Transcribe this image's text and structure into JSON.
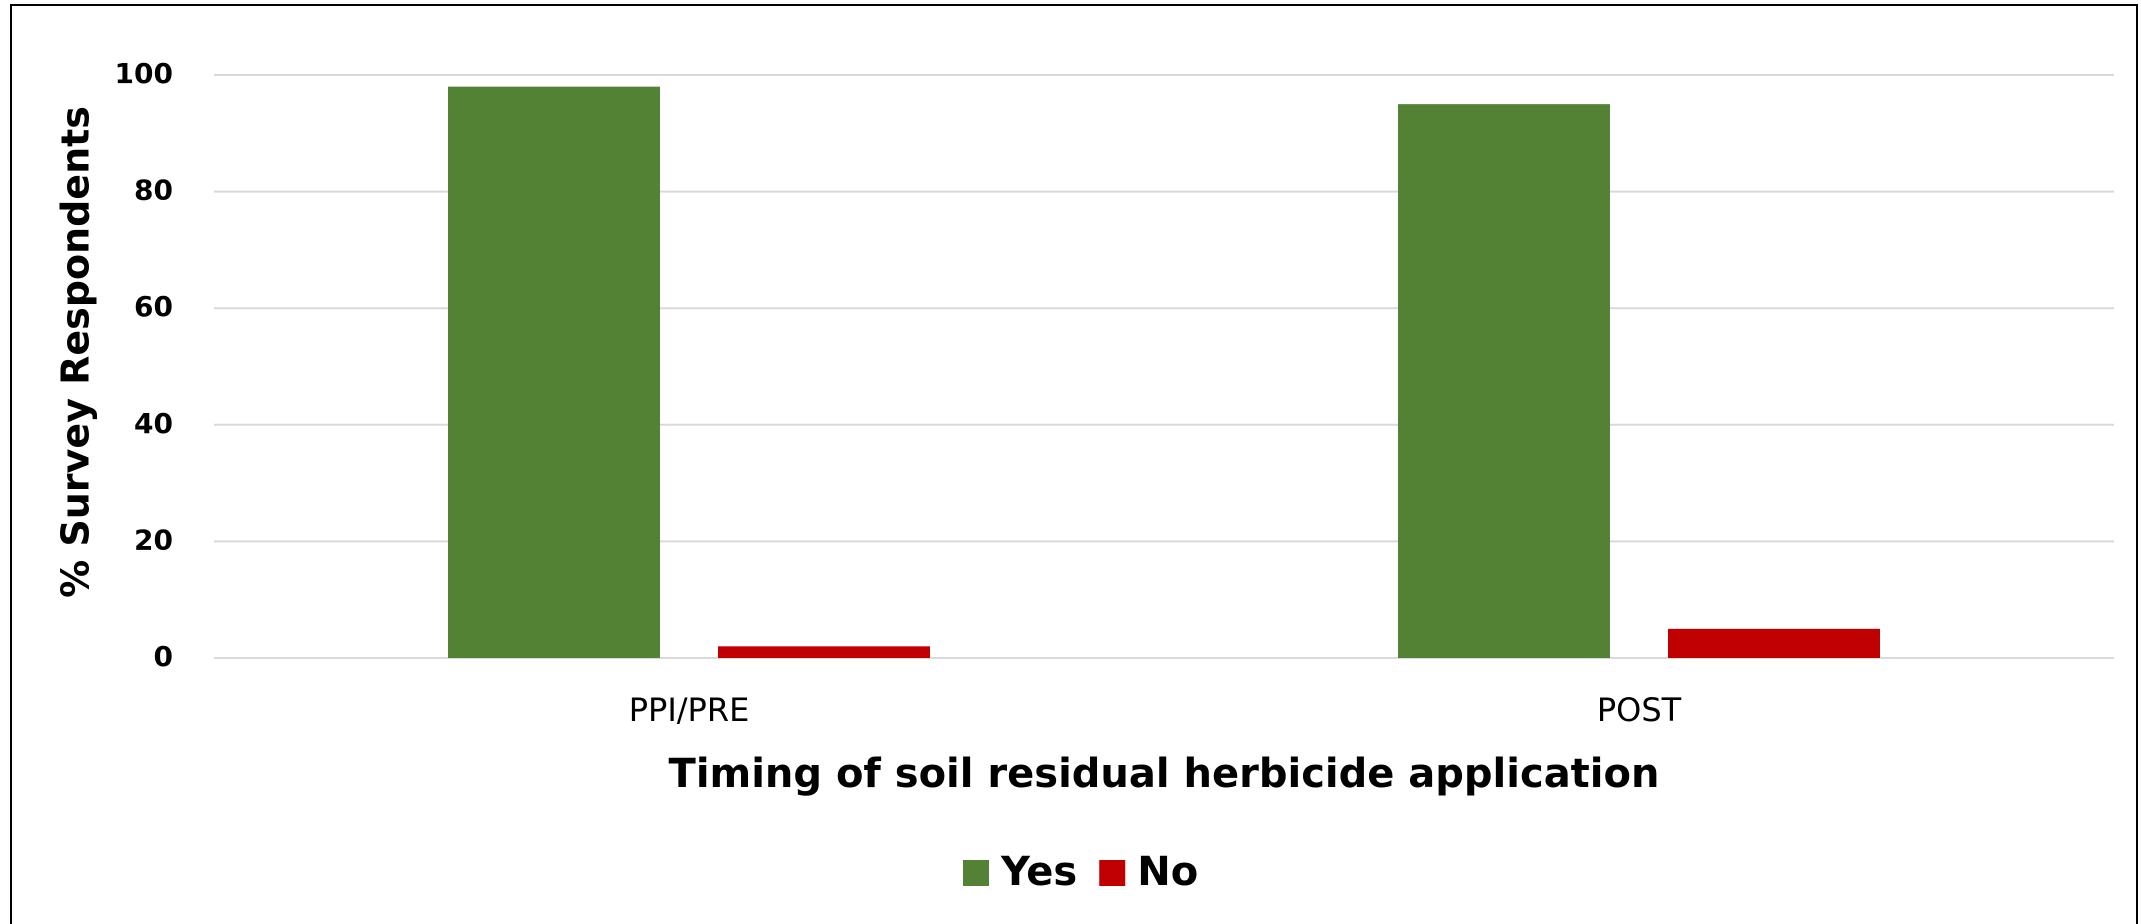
{
  "chart_data": {
    "type": "bar",
    "x_label": "Timing of soil residual herbicide application",
    "y_label": "% Survey Respondents",
    "categories": [
      "PPI/PRE",
      "POST"
    ],
    "series": [
      {
        "name": "Yes",
        "color": "#548235",
        "values": [
          98,
          95
        ]
      },
      {
        "name": "No",
        "color": "#c00000",
        "values": [
          2,
          5
        ]
      }
    ],
    "ylim": [
      0,
      100
    ],
    "yticks": [
      0,
      20,
      40,
      60,
      80,
      100
    ],
    "grid": true,
    "legend": "bottom"
  }
}
